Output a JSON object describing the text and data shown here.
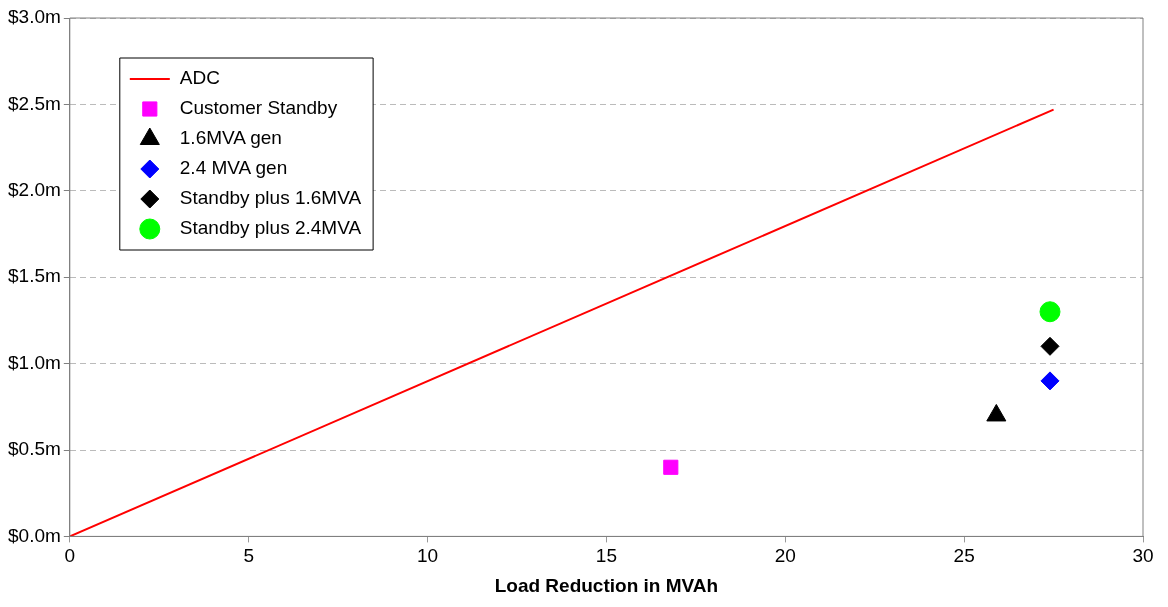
{
  "chart_data": {
    "type": "scatter",
    "xlabel": "Load Reduction in MVAh",
    "xlim": [
      0,
      30
    ],
    "xticks": [
      0,
      5,
      10,
      15,
      20,
      25,
      30
    ],
    "ylim": [
      0,
      3
    ],
    "yticks": [
      {
        "value": 0,
        "label": "$0.0m"
      },
      {
        "value": 0.5,
        "label": "$0.5m"
      },
      {
        "value": 1,
        "label": "$1.0m"
      },
      {
        "value": 1.5,
        "label": "$1.5m"
      },
      {
        "value": 2,
        "label": "$2.0m"
      },
      {
        "value": 2.5,
        "label": "$2.5m"
      },
      {
        "value": 3,
        "label": "$3.0m"
      }
    ],
    "grid": "y",
    "legend": "top left",
    "series": [
      {
        "name": "ADC",
        "type": "line",
        "marker": "none",
        "line_style": "solid",
        "color": "#ff0000",
        "x": [
          0,
          27.5
        ],
        "values": [
          0,
          2.47
        ]
      },
      {
        "name": "Customer Standby",
        "marker": "square",
        "color": "#ff00ff",
        "x": [
          16.8
        ],
        "values": [
          0.4
        ]
      },
      {
        "name": "1.6MVA gen",
        "marker": "triangle",
        "color": "#000000",
        "x": [
          25.9
        ],
        "values": [
          0.7
        ]
      },
      {
        "name": "2.4 MVA gen",
        "marker": "diamond",
        "color": "#0000ff",
        "x": [
          27.4
        ],
        "values": [
          0.9
        ]
      },
      {
        "name": "Standby plus 1.6MVA",
        "marker": "diamond",
        "color": "#000000",
        "x": [
          27.4
        ],
        "values": [
          1.1
        ]
      },
      {
        "name": "Standby plus 2.4MVA",
        "marker": "circle",
        "color": "#00ff00",
        "x": [
          27.4
        ],
        "values": [
          1.3
        ]
      }
    ]
  }
}
